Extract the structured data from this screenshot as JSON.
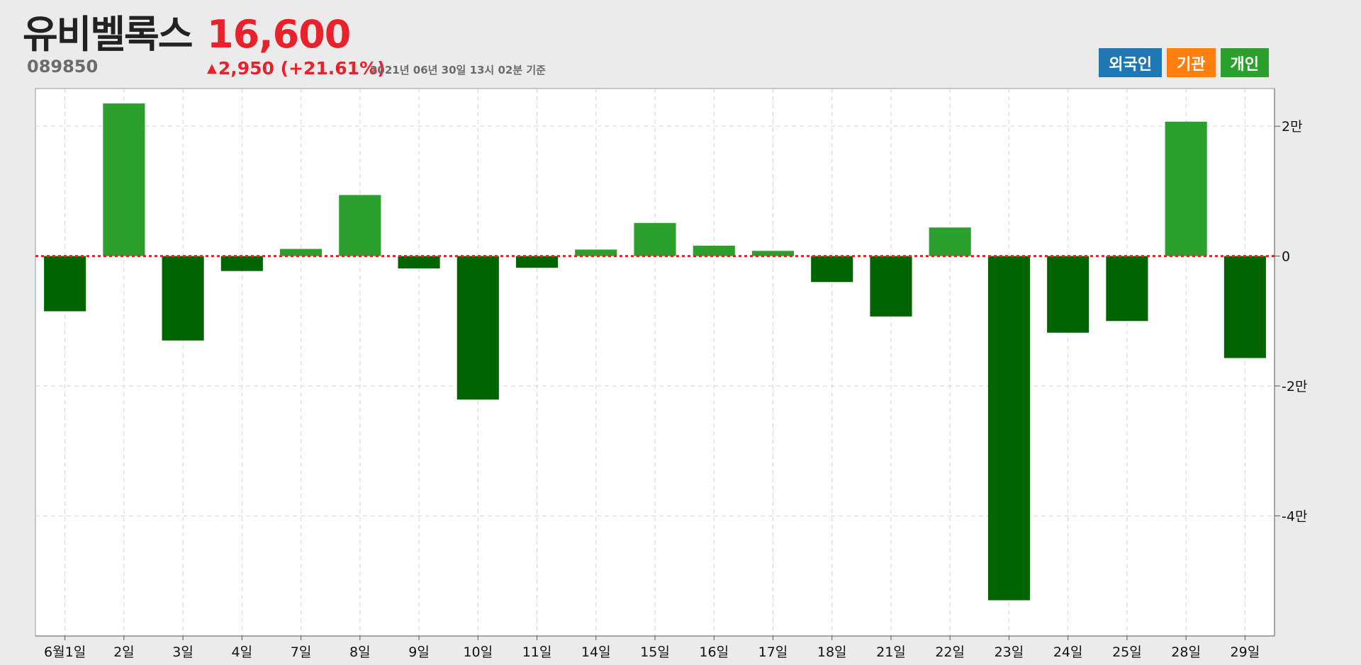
{
  "header": {
    "stock_name": "유비벨록스",
    "stock_code": "089850",
    "price": "16,600",
    "change_arrow": "▲",
    "change": "2,950 (+21.61%)",
    "timestamp": "2021년 06년 30일 13시 02분 기준"
  },
  "legend": {
    "items": [
      {
        "label": "외국인",
        "color": "#1f77b4"
      },
      {
        "label": "기관",
        "color": "#ff7f0e"
      },
      {
        "label": "개인",
        "color": "#2ca02c"
      }
    ]
  },
  "colors": {
    "positive": "#2ca02c",
    "negative": "#006400",
    "zero_line": "#e8212a",
    "price": "#e8212a"
  },
  "chart_data": {
    "type": "bar",
    "title": "",
    "xlabel": "",
    "ylabel": "",
    "categories": [
      "6월1일",
      "2일",
      "3일",
      "4일",
      "7일",
      "8일",
      "9일",
      "10일",
      "11일",
      "14일",
      "15일",
      "16일",
      "17일",
      "18일",
      "21일",
      "22일",
      "23일",
      "24일",
      "25일",
      "28일",
      "29일"
    ],
    "series": [
      {
        "name": "개인",
        "values": [
          -8500,
          23500,
          -13000,
          -2300,
          1100,
          9400,
          -1900,
          -22100,
          -1800,
          1000,
          5100,
          1600,
          800,
          -4000,
          -9300,
          4400,
          -53000,
          -11800,
          -10000,
          20700,
          -15700
        ]
      }
    ],
    "ylim": [
      -58500,
      25800
    ],
    "yticks": [
      20000,
      0,
      -20000,
      -40000
    ],
    "ytick_labels": [
      "2만",
      "0",
      "-2만",
      "-4만"
    ],
    "grid": true,
    "zero_line": "dotted-red",
    "y_axis_position": "right",
    "legend_position": "top-right"
  }
}
